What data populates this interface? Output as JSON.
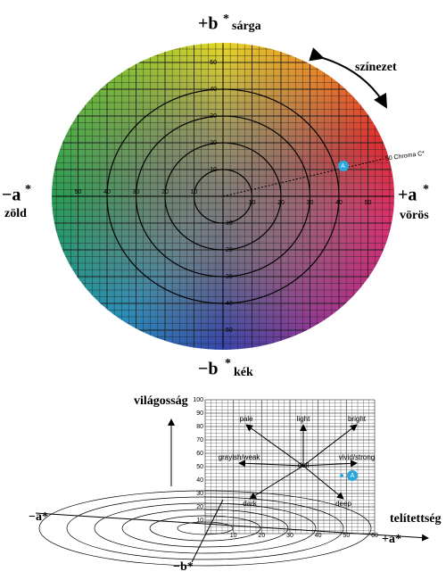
{
  "top": {
    "b_plus": "+b",
    "b_minus": "−b",
    "a_plus": "+a",
    "a_minus": "−a",
    "star": "*",
    "b_plus_name": "sárga",
    "b_minus_name": "kék",
    "a_plus_name": "vörös",
    "a_minus_name": "zöld",
    "hue": "színezet",
    "chroma_label": "50 Chroma C*",
    "point": "A",
    "axis_ticks": [
      10,
      20,
      30,
      40,
      50
    ]
  },
  "bottom": {
    "lightness": "világosság",
    "saturation": "telítettség",
    "point": "A",
    "l_ticks": [
      10,
      20,
      30,
      40,
      50,
      60,
      70,
      80,
      90,
      100
    ],
    "c_ticks": [
      10,
      20,
      30,
      40,
      50,
      60
    ],
    "a_minus": "−a*",
    "a_plus": "+a*",
    "b_minus": "−b*",
    "tones": [
      "pale",
      "light",
      "bright",
      "grayish/weak",
      "dull",
      "vivid/strong",
      "dark",
      "deep"
    ]
  }
}
